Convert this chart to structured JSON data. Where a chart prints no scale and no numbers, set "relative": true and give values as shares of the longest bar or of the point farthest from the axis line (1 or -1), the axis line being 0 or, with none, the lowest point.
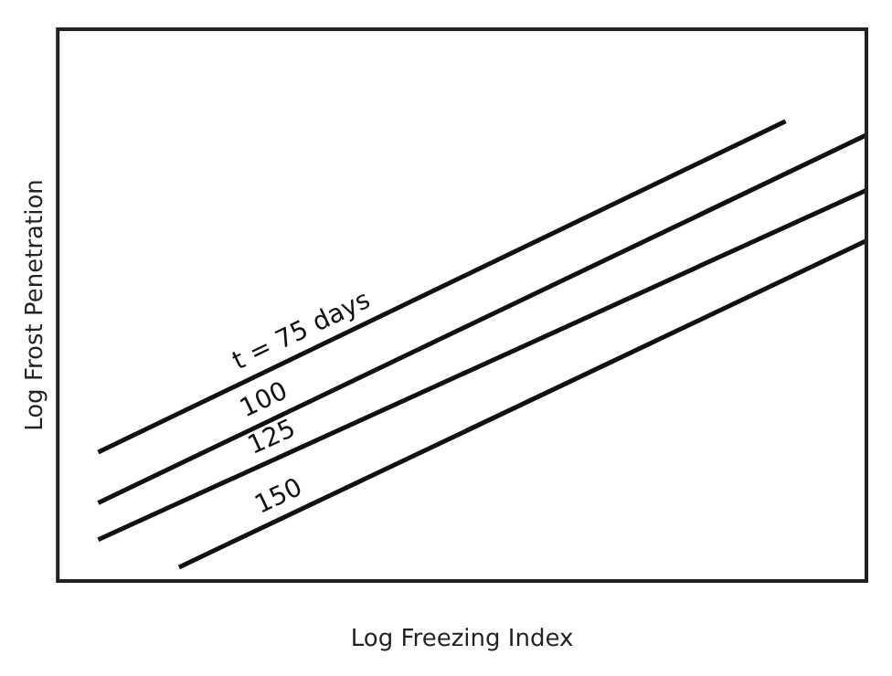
{
  "chart_data": {
    "type": "line",
    "relative": true,
    "xlabel": "Log Freezing Index",
    "ylabel": "Log Frost Penetration",
    "categories": [
      null,
      null,
      null,
      null,
      null,
      null,
      null,
      null,
      null,
      null,
      null,
      null,
      null,
      null,
      null,
      null,
      null,
      null,
      null,
      null,
      null
    ],
    "series": [
      {
        "name": "t = 75 days",
        "color": "#111111",
        "values": [
          null,
          0.28,
          null,
          null,
          null,
          null,
          null,
          null,
          null,
          null,
          null,
          null,
          null,
          null,
          null,
          null,
          null,
          null,
          1.0,
          null,
          null
        ]
      },
      {
        "name": "100",
        "color": "#111111",
        "values": [
          null,
          0.17,
          null,
          null,
          null,
          null,
          null,
          null,
          null,
          null,
          null,
          null,
          null,
          null,
          null,
          null,
          null,
          null,
          null,
          null,
          0.97
        ]
      },
      {
        "name": "125",
        "color": "#111111",
        "values": [
          null,
          0.09,
          null,
          null,
          null,
          null,
          null,
          null,
          null,
          null,
          null,
          null,
          null,
          null,
          null,
          null,
          null,
          null,
          null,
          null,
          0.85
        ]
      },
      {
        "name": "150",
        "color": "#111111",
        "values": [
          null,
          null,
          null,
          0.03,
          null,
          null,
          null,
          null,
          null,
          null,
          null,
          null,
          null,
          null,
          null,
          null,
          null,
          null,
          null,
          null,
          0.74
        ]
      }
    ],
    "legend": false,
    "grid": false,
    "marker": "none",
    "line_style": "solid"
  }
}
